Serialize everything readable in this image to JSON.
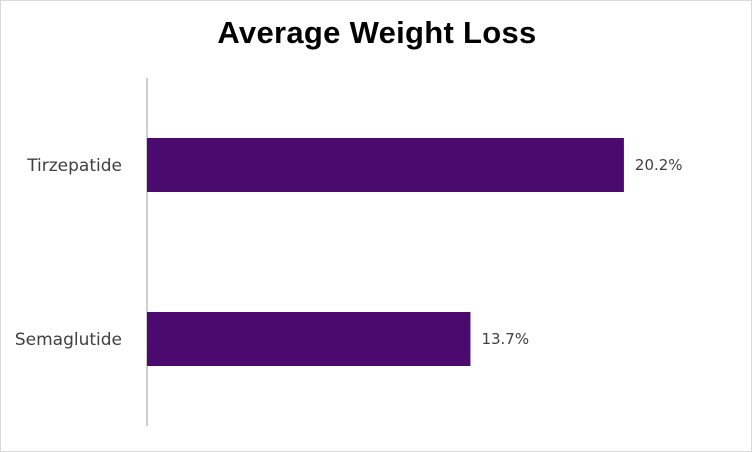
{
  "chart_data": {
    "type": "bar",
    "orientation": "horizontal",
    "title": "Average Weight Loss",
    "xlabel": "",
    "ylabel": "",
    "categories": [
      "Tirzepatide",
      "Semaglutide"
    ],
    "values": [
      20.2,
      13.7
    ],
    "data_labels": [
      "20.2%",
      "13.7%"
    ],
    "unit": "%",
    "xlim": [
      0,
      20.5
    ],
    "grid": false,
    "legend": "none",
    "bar_color": "#4B0A6E"
  }
}
